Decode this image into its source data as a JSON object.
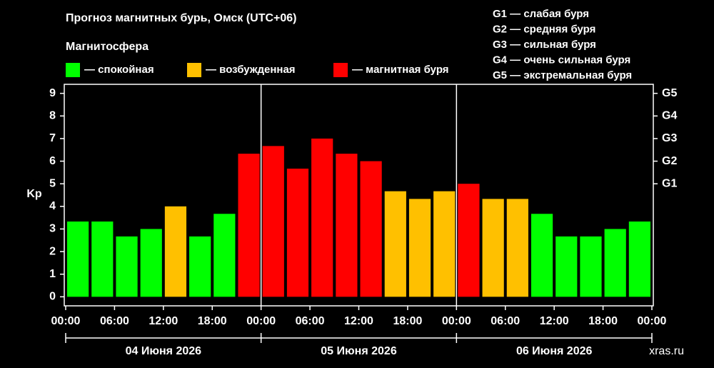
{
  "chart_data": {
    "type": "bar",
    "title": "Прогноз магнитных бурь, Омск (UTC+06)",
    "legend_title": "Магнитосфера",
    "ylabel": "Kp",
    "watermark": "xras.ru",
    "g_scale": [
      "G1 — слабая буря",
      "G2 — средняя буря",
      "G3 — сильная буря",
      "G4 — очень сильная буря",
      "G5 — экстремальная буря"
    ],
    "days": [
      "04 Июня 2026",
      "05 Июня 2026",
      "06 Июня 2026"
    ],
    "x": [
      0,
      3,
      6,
      9,
      12,
      15,
      18,
      21,
      24,
      27,
      30,
      33,
      36,
      39,
      42,
      45,
      48,
      51,
      54,
      57,
      60,
      63,
      66,
      69
    ],
    "xlim": [
      0,
      72
    ],
    "xticks": [
      {
        "value": 0,
        "label": "00:00"
      },
      {
        "value": 6,
        "label": "06:00"
      },
      {
        "value": 12,
        "label": "12:00"
      },
      {
        "value": 18,
        "label": "18:00"
      },
      {
        "value": 24,
        "label": "00:00"
      },
      {
        "value": 30,
        "label": "06:00"
      },
      {
        "value": 36,
        "label": "12:00"
      },
      {
        "value": 42,
        "label": "18:00"
      },
      {
        "value": 48,
        "label": "00:00"
      },
      {
        "value": 54,
        "label": "06:00"
      },
      {
        "value": 60,
        "label": "12:00"
      },
      {
        "value": 66,
        "label": "18:00"
      },
      {
        "value": 72,
        "label": "00:00"
      }
    ],
    "ylim": [
      -0.4,
      9.4
    ],
    "yticks": [
      0,
      1,
      2,
      3,
      4,
      5,
      6,
      7,
      8,
      9
    ],
    "y2lim": [
      -0.4,
      9.4
    ],
    "y2ticks": [
      {
        "value": 5,
        "label": "G1"
      },
      {
        "value": 6,
        "label": "G2"
      },
      {
        "value": 7,
        "label": "G3"
      },
      {
        "value": 8,
        "label": "G4"
      },
      {
        "value": 9,
        "label": "G5"
      }
    ],
    "series": [
      {
        "name": "— спокойная",
        "color": "#00ff00",
        "values": [
          3.33,
          3.33,
          2.67,
          3,
          null,
          2.67,
          3.67,
          null,
          null,
          null,
          null,
          null,
          null,
          null,
          null,
          null,
          null,
          null,
          null,
          3.67,
          2.67,
          2.67,
          3,
          3.33
        ]
      },
      {
        "name": "— возбужденная",
        "color": "#ffc000",
        "values": [
          null,
          null,
          null,
          null,
          4,
          null,
          null,
          null,
          null,
          null,
          null,
          null,
          null,
          4.67,
          4.33,
          4.67,
          null,
          4.33,
          4.33,
          null,
          null,
          null,
          null,
          null
        ]
      },
      {
        "name": "— магнитная буря",
        "color": "#ff0000",
        "values": [
          null,
          null,
          null,
          null,
          null,
          null,
          null,
          6.33,
          6.67,
          5.67,
          7,
          6.33,
          6,
          null,
          null,
          null,
          5,
          null,
          null,
          null,
          null,
          null,
          null,
          null
        ]
      }
    ]
  }
}
